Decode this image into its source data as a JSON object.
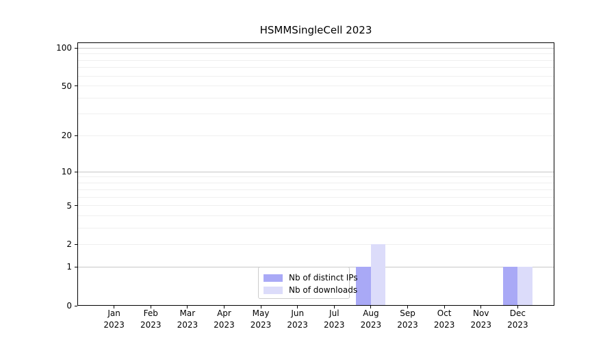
{
  "chart_data": {
    "type": "bar",
    "title": "HSMMSingleCell 2023",
    "categories": [
      "Jan 2023",
      "Feb 2023",
      "Mar 2023",
      "Apr 2023",
      "May 2023",
      "Jun 2023",
      "Jul 2023",
      "Aug 2023",
      "Sep 2023",
      "Oct 2023",
      "Nov 2023",
      "Dec 2023"
    ],
    "x_tick_months": [
      "Jan",
      "Feb",
      "Mar",
      "Apr",
      "May",
      "Jun",
      "Jul",
      "Aug",
      "Sep",
      "Oct",
      "Nov",
      "Dec"
    ],
    "x_tick_year": "2023",
    "series": [
      {
        "name": "Nb of distinct IPs",
        "color": "#a9a9f6",
        "values": [
          0,
          0,
          0,
          0,
          0,
          0,
          0,
          1,
          0,
          0,
          0,
          1
        ]
      },
      {
        "name": "Nb of downloads",
        "color": "#dcdcfa",
        "values": [
          0,
          0,
          0,
          0,
          0,
          0,
          0,
          2,
          0,
          0,
          0,
          1
        ]
      }
    ],
    "xlabel": "",
    "ylabel": "",
    "y_axis": {
      "scale": "log1p",
      "tick_labels": [
        "100",
        "50",
        "20",
        "10",
        "5",
        "2",
        "1",
        "0"
      ],
      "tick_values": [
        100,
        50,
        20,
        10,
        5,
        2,
        1,
        0
      ],
      "major_grid_values": [
        1,
        10,
        100
      ],
      "minor_grid_values": [
        2,
        3,
        4,
        5,
        6,
        7,
        8,
        9,
        20,
        30,
        40,
        50,
        60,
        70,
        80,
        90
      ],
      "ylim": [
        0,
        110
      ]
    },
    "grid": true,
    "legend_position": "lower center-left inside plot",
    "colors": {
      "major_grid": "#c6c6c6",
      "minor_grid": "#efefef",
      "spine": "#000000",
      "legend_border": "#cccccc",
      "legend_bg": "rgba(255,255,255,0.8)"
    }
  }
}
